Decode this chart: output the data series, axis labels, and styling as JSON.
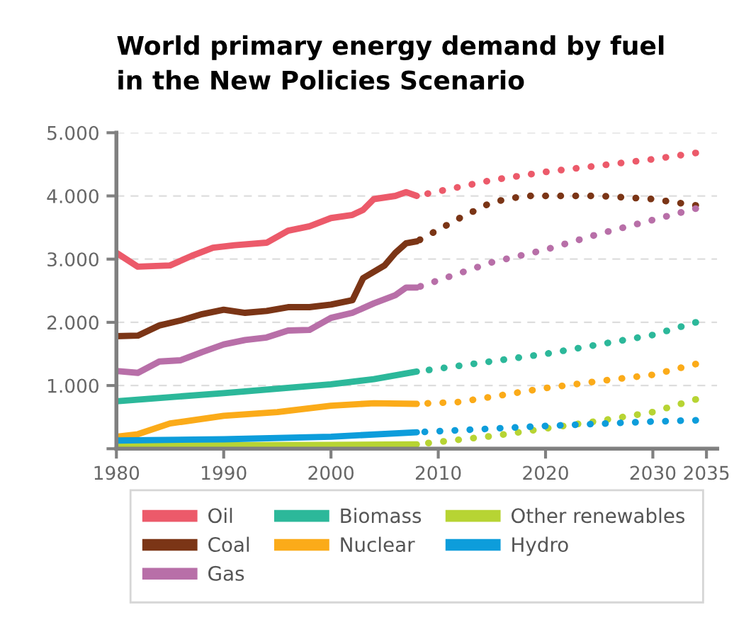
{
  "chart_data": {
    "type": "line",
    "title": "World primary energy demand by fuel\nin the New Policies Scenario",
    "xlim": [
      1980,
      2036
    ],
    "xticks": [
      1980,
      1990,
      2000,
      2010,
      2020,
      2030,
      2035
    ],
    "ylim": [
      0,
      5000
    ],
    "yticks": [
      {
        "value": 0,
        "label": null
      },
      {
        "value": 1000,
        "label": "1.000"
      },
      {
        "value": 2000,
        "label": "2.000"
      },
      {
        "value": 3000,
        "label": "3.000"
      },
      {
        "value": 4000,
        "label": "4.000"
      },
      {
        "value": 5000,
        "label": "5.000"
      }
    ],
    "grid": "y",
    "legend": "bottom",
    "series": [
      {
        "name": "Oil",
        "color": "#ec5a6a",
        "line_style": "solid",
        "x": [
          1980,
          1982,
          1985,
          1987,
          1989,
          1991,
          1994,
          1996,
          1998,
          2000,
          2002,
          2003,
          2004,
          2006,
          2007,
          2008
        ],
        "values": [
          3100,
          2880,
          2900,
          3050,
          3180,
          3220,
          3260,
          3450,
          3520,
          3650,
          3700,
          3780,
          3950,
          4000,
          4060,
          4000
        ]
      },
      {
        "name": "Coal",
        "color": "#7b3516",
        "line_style": "solid",
        "x": [
          1980,
          1982,
          1984,
          1986,
          1988,
          1990,
          1992,
          1994,
          1996,
          1998,
          2000,
          2002,
          2003,
          2005,
          2006,
          2007,
          2008
        ],
        "values": [
          1780,
          1790,
          1950,
          2030,
          2130,
          2200,
          2150,
          2180,
          2240,
          2240,
          2280,
          2350,
          2700,
          2900,
          3100,
          3250,
          3280
        ]
      },
      {
        "name": "Gas",
        "color": "#b86fa8",
        "line_style": "solid",
        "x": [
          1980,
          1982,
          1984,
          1986,
          1988,
          1990,
          1992,
          1994,
          1996,
          1998,
          2000,
          2002,
          2004,
          2006,
          2007,
          2008
        ],
        "values": [
          1230,
          1200,
          1380,
          1400,
          1530,
          1650,
          1720,
          1760,
          1870,
          1880,
          2070,
          2150,
          2300,
          2430,
          2550,
          2550
        ]
      },
      {
        "name": "Biomass",
        "color": "#2cb89a",
        "line_style": "solid",
        "x": [
          1980,
          1990,
          1995,
          2000,
          2004,
          2008
        ],
        "values": [
          750,
          880,
          950,
          1020,
          1100,
          1220
        ]
      },
      {
        "name": "Nuclear",
        "color": "#fbab19",
        "line_style": "solid",
        "x": [
          1980,
          1982,
          1985,
          1990,
          1995,
          2000,
          2004,
          2008
        ],
        "values": [
          190,
          230,
          400,
          520,
          580,
          680,
          720,
          710
        ]
      },
      {
        "name": "Other renewables",
        "color": "#b7d433",
        "line_style": "solid",
        "x": [
          1980,
          2000,
          2008
        ],
        "values": [
          50,
          60,
          70
        ]
      },
      {
        "name": "Hydro",
        "color": "#0d9ddb",
        "line_style": "solid",
        "x": [
          1980,
          1990,
          2000,
          2008
        ],
        "values": [
          130,
          150,
          190,
          260
        ]
      },
      {
        "color": "#ec5a6a",
        "line_style": "dotted",
        "x": [
          2008,
          2015,
          2020,
          2025,
          2030,
          2034
        ],
        "values": [
          4000,
          4250,
          4380,
          4480,
          4580,
          4680
        ]
      },
      {
        "color": "#7b3516",
        "line_style": "dotted",
        "x": [
          2008,
          2012,
          2015,
          2018,
          2025,
          2030,
          2034
        ],
        "values": [
          3280,
          3650,
          3900,
          4000,
          4000,
          3950,
          3850
        ]
      },
      {
        "color": "#b86fa8",
        "line_style": "dotted",
        "x": [
          2008,
          2015,
          2020,
          2025,
          2030,
          2034
        ],
        "values": [
          2550,
          2950,
          3150,
          3400,
          3620,
          3800
        ]
      },
      {
        "color": "#2cb89a",
        "line_style": "dotted",
        "x": [
          2008,
          2020,
          2030,
          2034
        ],
        "values": [
          1220,
          1500,
          1800,
          2000
        ]
      },
      {
        "color": "#fbab19",
        "line_style": "dotted",
        "x": [
          2008,
          2012,
          2020,
          2025,
          2030,
          2034
        ],
        "values": [
          710,
          740,
          960,
          1070,
          1170,
          1340
        ]
      },
      {
        "color": "#b7d433",
        "line_style": "dotted",
        "x": [
          2008,
          2015,
          2020,
          2025,
          2030,
          2034
        ],
        "values": [
          70,
          200,
          320,
          440,
          580,
          780
        ]
      },
      {
        "color": "#0d9ddb",
        "line_style": "dotted",
        "x": [
          2008,
          2020,
          2030,
          2034
        ],
        "values": [
          260,
          360,
          430,
          450
        ]
      }
    ]
  }
}
